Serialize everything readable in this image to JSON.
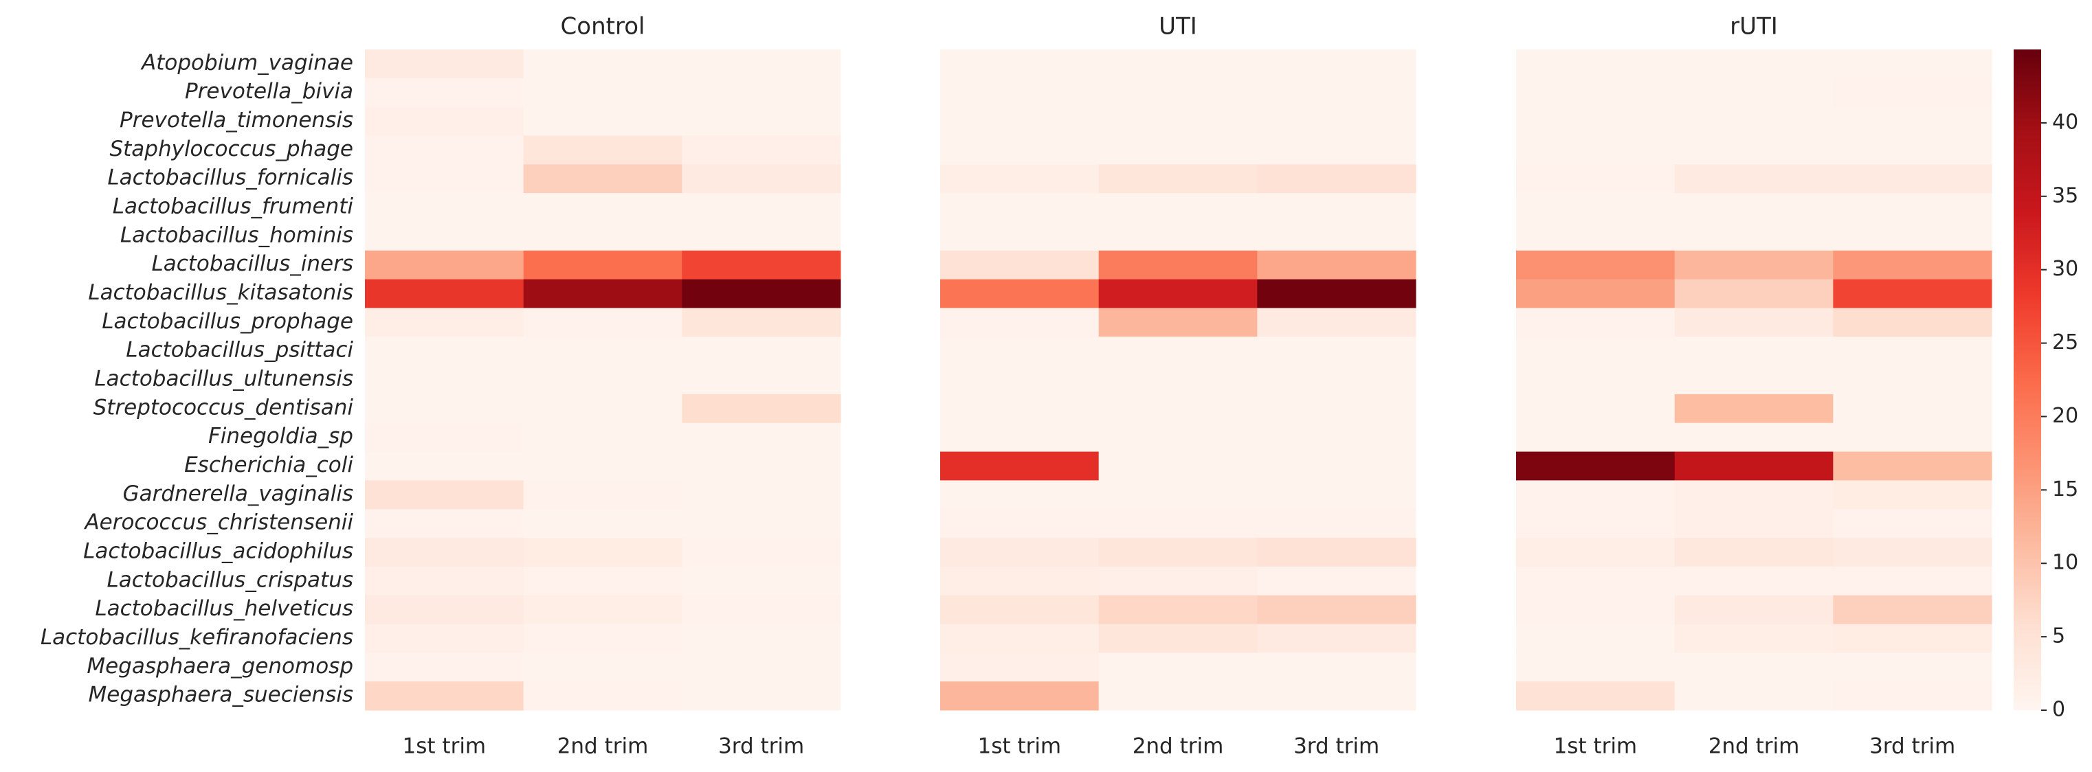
{
  "chart_data": {
    "type": "heatmap",
    "rows": [
      "Atopobium_vaginae",
      "Prevotella_bivia",
      "Prevotella_timonensis",
      "Staphylococcus_phage",
      "Lactobacillus_fornicalis",
      "Lactobacillus_frumenti",
      "Lactobacillus_hominis",
      "Lactobacillus_iners",
      "Lactobacillus_kitasatonis",
      "Lactobacillus_prophage",
      "Lactobacillus_psittaci",
      "Lactobacillus_ultunensis",
      "Streptococcus_dentisani",
      "Finegoldia_sp",
      "Escherichia_coli",
      "Gardnerella_vaginalis",
      "Aerococcus_christensenii",
      "Lactobacillus_acidophilus",
      "Lactobacillus_crispatus",
      "Lactobacillus_helveticus",
      "Lactobacillus_kefiranofaciens",
      "Megasphaera_genomosp",
      "Megasphaera_sueciensis"
    ],
    "columns": [
      "1st trim",
      "2nd trim",
      "3rd trim"
    ],
    "panels": [
      {
        "title": "Control",
        "values": [
          [
            3,
            0.5,
            0.5
          ],
          [
            1,
            0.5,
            0.5
          ],
          [
            1.5,
            0.5,
            0.5
          ],
          [
            1,
            4,
            1.5
          ],
          [
            1,
            8,
            3
          ],
          [
            0.5,
            0.5,
            0.5
          ],
          [
            0.5,
            0.5,
            0.5
          ],
          [
            14,
            22,
            27
          ],
          [
            29,
            40,
            44
          ],
          [
            2,
            1,
            4
          ],
          [
            0.5,
            0.5,
            0.5
          ],
          [
            0.5,
            0.5,
            0.5
          ],
          [
            0.5,
            0.5,
            6
          ],
          [
            1,
            0.5,
            0.5
          ],
          [
            0.5,
            0.5,
            0.5
          ],
          [
            5,
            1,
            0.5
          ],
          [
            1,
            0.5,
            0.5
          ],
          [
            3,
            2.5,
            1
          ],
          [
            1.5,
            1,
            0.5
          ],
          [
            3,
            2,
            1
          ],
          [
            1.5,
            1,
            0.5
          ],
          [
            1,
            0.5,
            0.5
          ],
          [
            7,
            1,
            0.5
          ]
        ]
      },
      {
        "title": "UTI",
        "values": [
          [
            0.5,
            0.5,
            0.5
          ],
          [
            0.5,
            0.5,
            0.5
          ],
          [
            0.5,
            0.5,
            0.5
          ],
          [
            0.5,
            0.5,
            0.5
          ],
          [
            2,
            4,
            5
          ],
          [
            0.5,
            0.5,
            0.5
          ],
          [
            0.5,
            0.5,
            0.5
          ],
          [
            5,
            20,
            14
          ],
          [
            21,
            33,
            44
          ],
          [
            1,
            12,
            3
          ],
          [
            0.5,
            0.5,
            0.5
          ],
          [
            0.5,
            0.5,
            0.5
          ],
          [
            0.5,
            0.5,
            0.5
          ],
          [
            0.5,
            0.5,
            0.5
          ],
          [
            30,
            0.5,
            0.5
          ],
          [
            0.5,
            0.5,
            0.5
          ],
          [
            1,
            1,
            1
          ],
          [
            3,
            4,
            5
          ],
          [
            2,
            1.5,
            1
          ],
          [
            4,
            7,
            8
          ],
          [
            2,
            4,
            3
          ],
          [
            1.5,
            0.5,
            0.5
          ],
          [
            12,
            0.5,
            0.5
          ]
        ]
      },
      {
        "title": "rUTI",
        "values": [
          [
            0.5,
            0.5,
            0.5
          ],
          [
            0.5,
            0.5,
            1
          ],
          [
            0.5,
            0.5,
            0.5
          ],
          [
            0.5,
            0.5,
            0.5
          ],
          [
            1,
            3,
            3
          ],
          [
            0.5,
            0.5,
            0.5
          ],
          [
            0.5,
            0.5,
            0.5
          ],
          [
            17,
            12,
            16
          ],
          [
            15,
            8,
            27
          ],
          [
            1,
            3,
            6
          ],
          [
            0.5,
            0.5,
            0.5
          ],
          [
            0.5,
            0.5,
            0.5
          ],
          [
            0.5,
            11,
            0.5
          ],
          [
            0.5,
            0.5,
            0.5
          ],
          [
            43,
            35,
            11
          ],
          [
            1,
            1.5,
            2.5
          ],
          [
            1,
            1.5,
            1
          ],
          [
            2,
            3.5,
            3
          ],
          [
            1,
            1,
            1
          ],
          [
            1,
            3,
            8
          ],
          [
            0.5,
            2,
            2.5
          ],
          [
            0.5,
            0.5,
            0.5
          ],
          [
            5,
            0.5,
            1
          ]
        ]
      }
    ],
    "clim": [
      0,
      45
    ],
    "cticks": [
      0,
      5,
      10,
      15,
      20,
      25,
      30,
      35,
      40
    ],
    "colormap": [
      "#fff5f0",
      "#fee0d2",
      "#fcbba1",
      "#fc9272",
      "#fb6a4a",
      "#ef3b2c",
      "#cb181d",
      "#a50f15",
      "#67000d"
    ]
  }
}
